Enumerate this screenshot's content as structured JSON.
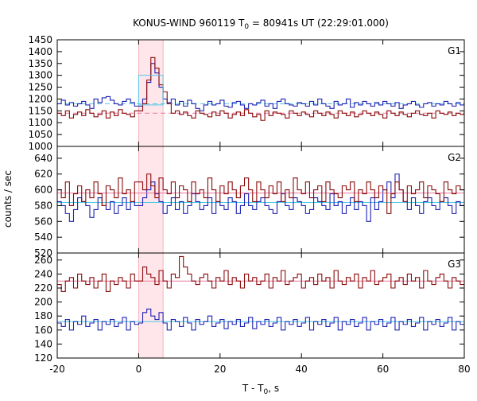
{
  "chart_data": {
    "type": "line",
    "title": {
      "prefix": "KONUS-WIND 960119 T",
      "sub": "0",
      "suffix": " = 80941s UT (22:29:01.000)"
    },
    "xlabel": {
      "prefix": "T - T",
      "sub": "0",
      "suffix": ", s"
    },
    "ylabel": "counts / sec",
    "xlim": [
      -20,
      80
    ],
    "xticks": [
      -20,
      0,
      20,
      40,
      60,
      80
    ],
    "bin_width": 1.0,
    "x_start": -20,
    "shaded_interval": [
      0,
      6
    ],
    "colors": {
      "red": "#8b0a0a",
      "blue": "#1e22b4",
      "red_level": "#e87aa0",
      "blue_level": "#4fc8e8",
      "shade": "#ffd6dc"
    },
    "panels": [
      {
        "label": "G1",
        "ylim": [
          1000,
          1450
        ],
        "yticks": [
          1000,
          1050,
          1100,
          1150,
          1200,
          1250,
          1300,
          1350,
          1400,
          1450
        ],
        "series": [
          {
            "color": "blue",
            "level": 1180,
            "values": [
              1180,
              1195,
              1175,
              1185,
              1170,
              1180,
              1190,
              1175,
              1160,
              1200,
              1185,
              1205,
              1210,
              1195,
              1180,
              1175,
              1190,
              1200,
              1185,
              1170,
              1170,
              1200,
              1270,
              1350,
              1310,
              1250,
              1200,
              1185,
              1200,
              1175,
              1190,
              1170,
              1195,
              1180,
              1160,
              1150,
              1175,
              1190,
              1175,
              1180,
              1195,
              1170,
              1165,
              1185,
              1190,
              1175,
              1160,
              1180,
              1175,
              1185,
              1195,
              1170,
              1180,
              1160,
              1190,
              1200,
              1180,
              1175,
              1170,
              1185,
              1180,
              1170,
              1190,
              1175,
              1200,
              1180,
              1170,
              1160,
              1190,
              1175,
              1180,
              1200,
              1165,
              1185,
              1175,
              1190,
              1180,
              1170,
              1185,
              1175,
              1190,
              1180,
              1170,
              1185,
              1160,
              1175,
              1180,
              1190,
              1175,
              1165,
              1180,
              1185,
              1170,
              1180,
              1175,
              1190,
              1180,
              1170,
              1185,
              1175
            ]
          },
          {
            "color": "red",
            "level": 1140,
            "values": [
              1140,
              1130,
              1150,
              1120,
              1135,
              1145,
              1130,
              1155,
              1140,
              1125,
              1135,
              1150,
              1120,
              1145,
              1130,
              1155,
              1140,
              1135,
              1125,
              1150,
              1150,
              1180,
              1280,
              1375,
              1330,
              1260,
              1230,
              1180,
              1140,
              1150,
              1135,
              1145,
              1130,
              1120,
              1150,
              1140,
              1135,
              1125,
              1145,
              1130,
              1150,
              1140,
              1120,
              1135,
              1145,
              1130,
              1155,
              1140,
              1125,
              1135,
              1110,
              1150,
              1130,
              1145,
              1140,
              1135,
              1120,
              1150,
              1140,
              1130,
              1145,
              1135,
              1125,
              1150,
              1140,
              1130,
              1145,
              1135,
              1120,
              1150,
              1140,
              1130,
              1145,
              1125,
              1135,
              1150,
              1140,
              1130,
              1145,
              1135,
              1120,
              1150,
              1140,
              1130,
              1145,
              1135,
              1125,
              1140,
              1150,
              1135,
              1130,
              1140,
              1120,
              1150,
              1140,
              1135,
              1145,
              1130,
              1140,
              1135
            ]
          }
        ]
      },
      {
        "label": "G2",
        "ylim": [
          520,
          655
        ],
        "yticks": [
          520,
          540,
          560,
          580,
          600,
          620,
          640
        ],
        "series": [
          {
            "color": "blue",
            "level": 584,
            "values": [
              585,
              580,
              570,
              560,
              575,
              590,
              585,
              580,
              565,
              575,
              590,
              580,
              575,
              585,
              570,
              580,
              590,
              575,
              585,
              580,
              580,
              590,
              600,
              610,
              595,
              585,
              570,
              580,
              590,
              575,
              585,
              570,
              580,
              595,
              585,
              575,
              580,
              590,
              570,
              585,
              580,
              575,
              590,
              585,
              570,
              580,
              595,
              580,
              575,
              585,
              590,
              580,
              575,
              570,
              585,
              595,
              580,
              575,
              590,
              585,
              580,
              570,
              575,
              590,
              585,
              580,
              575,
              595,
              580,
              585,
              570,
              580,
              590,
              575,
              585,
              580,
              560,
              590,
              575,
              585,
              600,
              610,
              590,
              620,
              600,
              585,
              575,
              590,
              580,
              570,
              585,
              590,
              580,
              575,
              585,
              590,
              580,
              570,
              585,
              580
            ]
          },
          {
            "color": "red",
            "level": 596,
            "values": [
              600,
              590,
              610,
              580,
              595,
              605,
              585,
              600,
              590,
              610,
              595,
              580,
              605,
              600,
              590,
              615,
              595,
              600,
              585,
              610,
              610,
              600,
              620,
              605,
              590,
              615,
              600,
              595,
              610,
              590,
              605,
              600,
              585,
              610,
              595,
              600,
              590,
              615,
              600,
              585,
              605,
              595,
              610,
              600,
              590,
              605,
              615,
              600,
              585,
              610,
              600,
              590,
              605,
              595,
              610,
              585,
              600,
              590,
              615,
              600,
              595,
              610,
              590,
              600,
              605,
              585,
              610,
              600,
              595,
              590,
              605,
              600,
              610,
              585,
              600,
              595,
              610,
              600,
              590,
              605,
              600,
              570,
              595,
              610,
              600,
              585,
              605,
              595,
              600,
              610,
              590,
              605,
              600,
              595,
              585,
              610,
              600,
              595,
              605,
              600
            ]
          }
        ]
      },
      {
        "label": "G3",
        "ylim": [
          120,
          270
        ],
        "yticks": [
          120,
          140,
          160,
          180,
          200,
          220,
          240,
          260
        ],
        "series": [
          {
            "color": "red",
            "level": 230,
            "values": [
              225,
              215,
              230,
              235,
              220,
              240,
              230,
              225,
              235,
              220,
              230,
              240,
              215,
              230,
              225,
              235,
              230,
              220,
              240,
              230,
              230,
              250,
              240,
              235,
              225,
              245,
              230,
              220,
              240,
              235,
              265,
              250,
              240,
              230,
              225,
              235,
              240,
              230,
              220,
              235,
              230,
              245,
              225,
              235,
              230,
              220,
              240,
              230,
              235,
              225,
              230,
              240,
              220,
              235,
              230,
              245,
              225,
              230,
              235,
              240,
              220,
              230,
              235,
              225,
              240,
              230,
              235,
              220,
              245,
              230,
              225,
              235,
              230,
              240,
              220,
              235,
              230,
              245,
              225,
              230,
              235,
              240,
              220,
              230,
              235,
              225,
              240,
              230,
              235,
              220,
              245,
              230,
              225,
              235,
              240,
              230,
              220,
              235,
              230,
              225
            ]
          },
          {
            "color": "blue",
            "level": 172,
            "values": [
              170,
              165,
              175,
              160,
              172,
              168,
              180,
              165,
              170,
              175,
              160,
              172,
              168,
              175,
              165,
              170,
              178,
              160,
              172,
              168,
              170,
              185,
              190,
              180,
              175,
              185,
              170,
              160,
              175,
              172,
              165,
              178,
              170,
              160,
              175,
              168,
              172,
              180,
              165,
              170,
              175,
              162,
              172,
              168,
              175,
              165,
              170,
              178,
              162,
              172,
              168,
              175,
              165,
              170,
              178,
              160,
              172,
              168,
              175,
              165,
              170,
              178,
              160,
              172,
              168,
              175,
              165,
              170,
              178,
              160,
              172,
              168,
              175,
              165,
              170,
              178,
              160,
              172,
              168,
              175,
              165,
              170,
              178,
              160,
              172,
              168,
              175,
              165,
              170,
              178,
              160,
              172,
              168,
              175,
              165,
              170,
              178,
              160,
              172,
              168
            ]
          }
        ]
      }
    ]
  }
}
